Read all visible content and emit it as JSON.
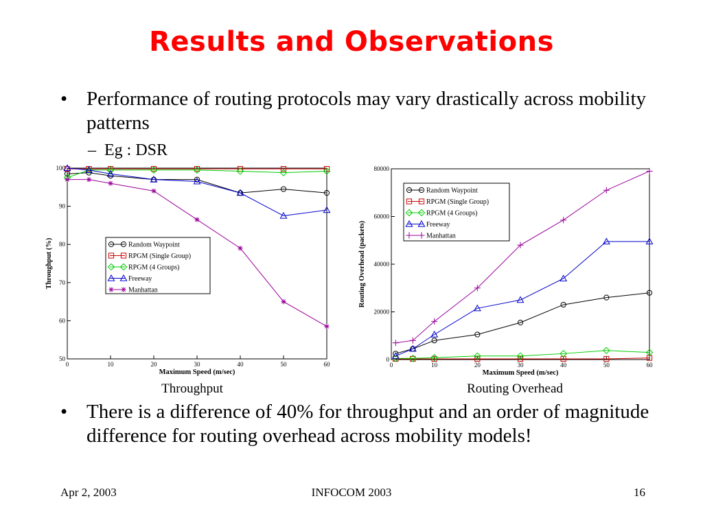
{
  "slide": {
    "title": "Results and Observations",
    "bullets": [
      "Performance of routing protocols may vary drastically across mobility patterns",
      "There is a difference of 40% for throughput and an order of magnitude difference for routing overhead across mobility models!"
    ],
    "sub_bullet": "Eg : DSR",
    "captions": [
      "Throughput",
      "Routing Overhead"
    ],
    "footer": {
      "left": "Apr 2, 2003",
      "center": "INFOCOM 2003",
      "right": "16"
    },
    "colors": {
      "title": "#ff0000"
    }
  },
  "chart_data": [
    {
      "type": "line",
      "xlabel": "Maximum Speed (m/sec)",
      "ylabel": "Throughput (%)",
      "xlim": [
        0,
        60
      ],
      "ylim": [
        50,
        100
      ],
      "xticks": [
        0,
        10,
        20,
        30,
        40,
        50,
        60
      ],
      "yticks": [
        50,
        60,
        70,
        80,
        90,
        100
      ],
      "grid": false,
      "legend_position": "center-left",
      "series": [
        {
          "name": "Random Waypoint",
          "marker": "circle",
          "color": "#000000",
          "x": [
            0,
            5,
            10,
            20,
            30,
            40,
            50,
            60
          ],
          "y": [
            98.5,
            98.8,
            98,
            97,
            97,
            93.5,
            94.5,
            93.5
          ]
        },
        {
          "name": "RPGM (Single Group)",
          "marker": "square",
          "color": "#cc0000",
          "x": [
            0,
            5,
            10,
            20,
            30,
            40,
            50,
            60
          ],
          "y": [
            99.8,
            99.8,
            99.8,
            99.8,
            99.8,
            99.8,
            99.8,
            99.8
          ]
        },
        {
          "name": "RPGM (4 Groups)",
          "marker": "diamond",
          "color": "#00cc00",
          "x": [
            0,
            5,
            10,
            20,
            30,
            40,
            50,
            60
          ],
          "y": [
            97.5,
            99.5,
            99.5,
            99.5,
            99.5,
            99.2,
            98.8,
            99.2
          ]
        },
        {
          "name": "Freeway",
          "marker": "triangle",
          "color": "#0000cc",
          "x": [
            0,
            5,
            10,
            20,
            30,
            40,
            50,
            60
          ],
          "y": [
            100,
            99.5,
            98.5,
            97,
            96.5,
            93.5,
            87.5,
            89
          ]
        },
        {
          "name": "Manhattan",
          "marker": "star",
          "color": "#990099",
          "x": [
            0,
            5,
            10,
            20,
            30,
            40,
            50,
            60
          ],
          "y": [
            97,
            97,
            96,
            94,
            86.5,
            79,
            65,
            58.5
          ]
        }
      ]
    },
    {
      "type": "line",
      "xlabel": "Maximum Speed (m/sec)",
      "ylabel": "Routing Overhead (packets)",
      "xlim": [
        0,
        60
      ],
      "ylim": [
        0,
        80000
      ],
      "xticks": [
        0,
        10,
        20,
        30,
        40,
        50,
        60
      ],
      "yticks": [
        0,
        20000,
        40000,
        60000,
        80000
      ],
      "grid": false,
      "legend_position": "top-left",
      "series": [
        {
          "name": "Random Waypoint",
          "marker": "circle",
          "color": "#000000",
          "x": [
            1,
            5,
            10,
            20,
            30,
            40,
            50,
            60
          ],
          "y": [
            2500,
            4500,
            8000,
            10500,
            15500,
            23000,
            26000,
            28000
          ]
        },
        {
          "name": "RPGM (Single Group)",
          "marker": "square",
          "color": "#cc0000",
          "x": [
            1,
            5,
            10,
            20,
            30,
            40,
            50,
            60
          ],
          "y": [
            300,
            300,
            300,
            300,
            300,
            300,
            300,
            700
          ]
        },
        {
          "name": "RPGM (4 Groups)",
          "marker": "diamond",
          "color": "#00cc00",
          "x": [
            1,
            5,
            10,
            20,
            30,
            40,
            50,
            60
          ],
          "y": [
            500,
            500,
            800,
            1500,
            1500,
            2500,
            3800,
            3000
          ]
        },
        {
          "name": "Freeway",
          "marker": "triangle",
          "color": "#0000cc",
          "x": [
            1,
            5,
            10,
            20,
            30,
            40,
            50,
            60
          ],
          "y": [
            1500,
            4500,
            10500,
            21500,
            25000,
            34000,
            49500,
            49500
          ]
        },
        {
          "name": "Manhattan",
          "marker": "plus",
          "color": "#990099",
          "x": [
            1,
            5,
            10,
            20,
            30,
            40,
            50,
            60
          ],
          "y": [
            7000,
            8000,
            16000,
            30000,
            48000,
            58500,
            71000,
            79000
          ]
        }
      ]
    }
  ]
}
